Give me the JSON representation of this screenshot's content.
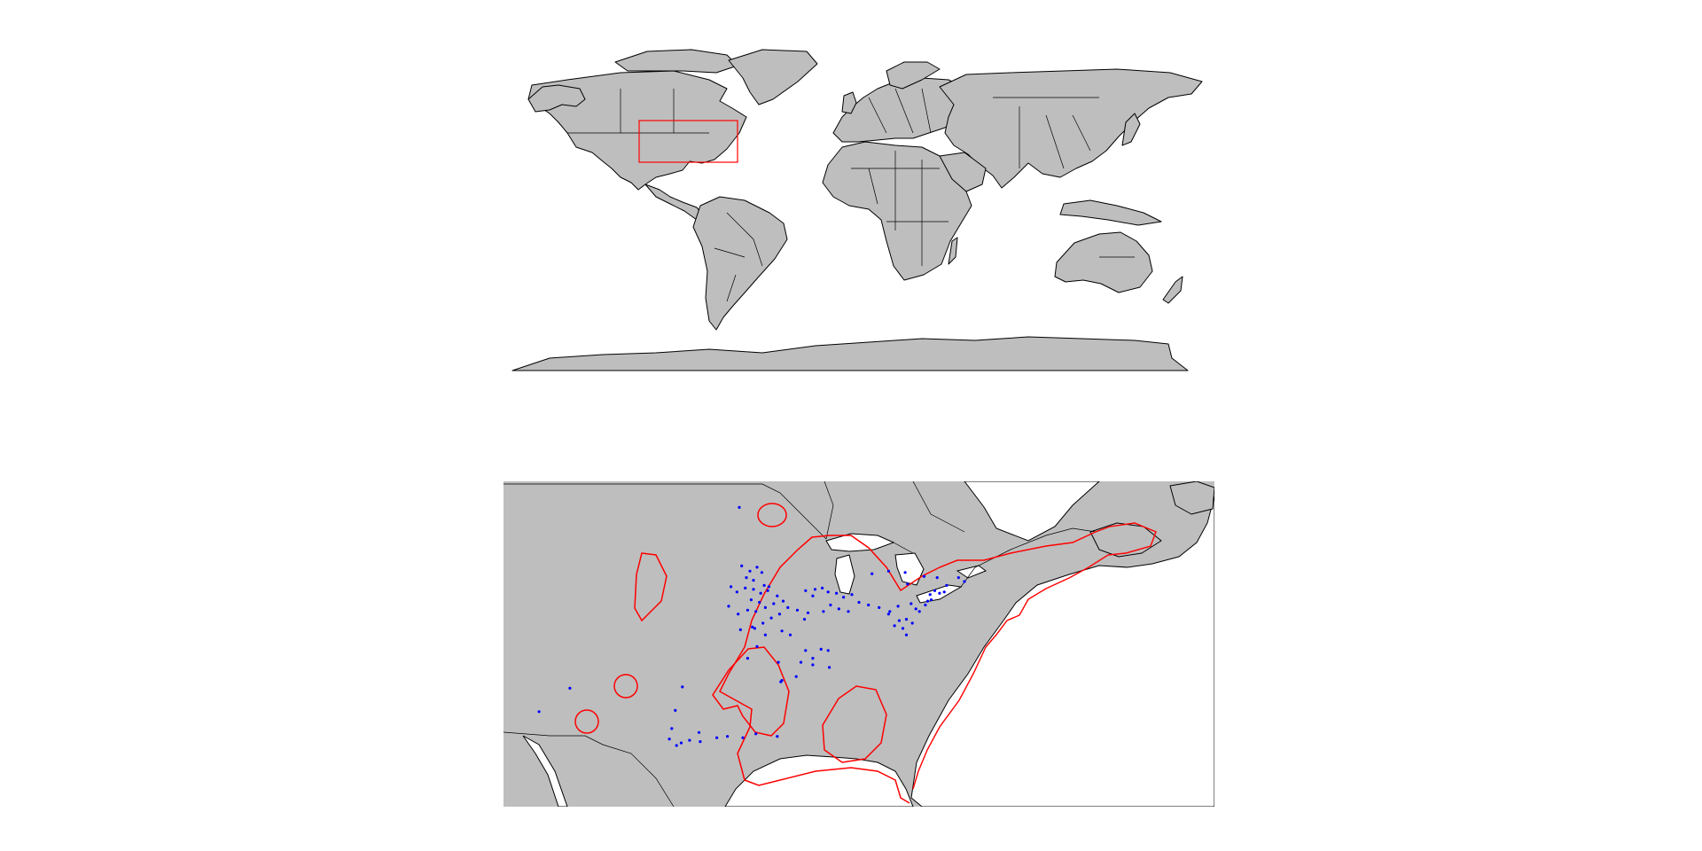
{
  "world_map": {
    "land_color": "#bebebe",
    "outline_color": "#000000",
    "inset_box_color": "#ff0000"
  },
  "detail_map": {
    "land_color": "#bebebe",
    "range_color": "#ff0000",
    "occurrence_color": "#0000ff",
    "occurrences_lonlat": [
      [
        -89.9,
        43.5
      ],
      [
        -89.2,
        43.1
      ],
      [
        -88.6,
        43.4
      ],
      [
        -88.2,
        43.0
      ],
      [
        -89.5,
        42.6
      ],
      [
        -88.9,
        42.4
      ],
      [
        -88.0,
        42.0
      ],
      [
        -87.6,
        41.9
      ],
      [
        -87.7,
        41.6
      ],
      [
        -88.3,
        41.4
      ],
      [
        -88.9,
        41.7
      ],
      [
        -89.6,
        41.8
      ],
      [
        -90.3,
        41.5
      ],
      [
        -90.8,
        41.9
      ],
      [
        -89.1,
        40.9
      ],
      [
        -88.4,
        40.7
      ],
      [
        -87.9,
        40.3
      ],
      [
        -88.7,
        40.0
      ],
      [
        -89.4,
        40.1
      ],
      [
        -90.2,
        39.8
      ],
      [
        -91.0,
        40.4
      ],
      [
        -87.2,
        40.6
      ],
      [
        -86.9,
        41.2
      ],
      [
        -86.4,
        40.8
      ],
      [
        -86.0,
        40.3
      ],
      [
        -86.7,
        39.8
      ],
      [
        -87.4,
        39.5
      ],
      [
        -88.1,
        39.1
      ],
      [
        -89.0,
        38.8
      ],
      [
        -90.0,
        38.6
      ],
      [
        -87.9,
        38.2
      ],
      [
        -86.5,
        38.5
      ],
      [
        -85.8,
        38.2
      ],
      [
        -84.5,
        41.6
      ],
      [
        -83.7,
        41.7
      ],
      [
        -83.1,
        41.8
      ],
      [
        -82.6,
        41.5
      ],
      [
        -83.9,
        41.2
      ],
      [
        -81.9,
        41.4
      ],
      [
        -81.3,
        41.1
      ],
      [
        -80.6,
        41.3
      ],
      [
        -80.0,
        40.7
      ],
      [
        -82.4,
        40.5
      ],
      [
        -81.7,
        40.2
      ],
      [
        -80.9,
        40.0
      ],
      [
        -83.0,
        40.0
      ],
      [
        -84.3,
        39.9
      ],
      [
        -85.2,
        40.1
      ],
      [
        -84.6,
        39.4
      ],
      [
        -79.2,
        40.5
      ],
      [
        -78.3,
        40.3
      ],
      [
        -77.4,
        40.0
      ],
      [
        -76.7,
        40.4
      ],
      [
        -75.6,
        40.6
      ],
      [
        -75.2,
        40.2
      ],
      [
        -74.9,
        40.0
      ],
      [
        -74.4,
        40.5
      ],
      [
        -74.2,
        40.8
      ],
      [
        -73.9,
        40.9
      ],
      [
        -74.0,
        41.3
      ],
      [
        -73.6,
        41.6
      ],
      [
        -73.2,
        41.4
      ],
      [
        -72.8,
        41.5
      ],
      [
        -72.6,
        42.0
      ],
      [
        -73.4,
        42.6
      ],
      [
        -74.5,
        42.7
      ],
      [
        -75.9,
        42.1
      ],
      [
        -77.5,
        43.1
      ],
      [
        -76.1,
        43.0
      ],
      [
        -78.9,
        42.9
      ],
      [
        -71.1,
        42.3
      ],
      [
        -71.6,
        42.6
      ],
      [
        -76.0,
        39.4
      ],
      [
        -76.6,
        39.3
      ],
      [
        -77.0,
        38.9
      ],
      [
        -76.3,
        38.7
      ],
      [
        -76.0,
        38.2
      ],
      [
        -75.5,
        39.1
      ],
      [
        -77.5,
        39.8
      ],
      [
        -83.2,
        37.1
      ],
      [
        -82.6,
        37.0
      ],
      [
        -84.5,
        37.0
      ],
      [
        -84.9,
        36.1
      ],
      [
        -83.9,
        35.9
      ],
      [
        -86.8,
        36.1
      ],
      [
        -88.6,
        37.3
      ],
      [
        -89.4,
        36.4
      ],
      [
        -88.8,
        38.7
      ],
      [
        -94.9,
        34.2
      ],
      [
        -95.5,
        32.4
      ],
      [
        -95.8,
        31.0
      ],
      [
        -96.0,
        30.2
      ],
      [
        -95.4,
        29.7
      ],
      [
        -95.0,
        29.9
      ],
      [
        -94.3,
        30.1
      ],
      [
        -93.4,
        30.0
      ],
      [
        -92.0,
        30.3
      ],
      [
        -91.1,
        30.4
      ],
      [
        -89.8,
        30.3
      ],
      [
        -88.7,
        30.6
      ],
      [
        -86.9,
        30.4
      ],
      [
        -93.5,
        30.7
      ],
      [
        -86.5,
        34.7
      ],
      [
        -85.3,
        35.0
      ],
      [
        -104.4,
        34.1
      ],
      [
        -107.0,
        32.3
      ],
      [
        -90.1,
        48.0
      ],
      [
        -83.9,
        36.4
      ],
      [
        -82.5,
        35.7
      ],
      [
        -86.6,
        34.6
      ]
    ]
  }
}
